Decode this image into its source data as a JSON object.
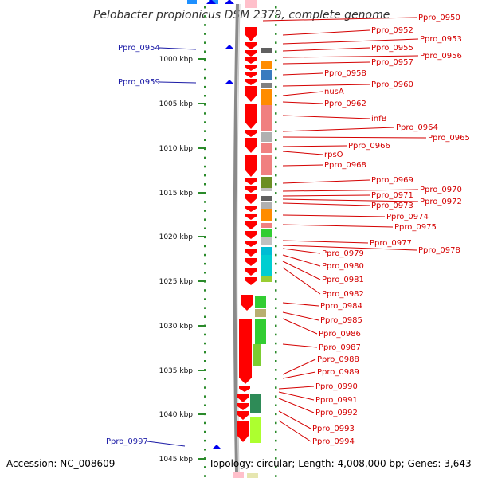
{
  "title": "Pelobacter propionicus DSM 2379, complete genome",
  "footer": {
    "accession": "Accession: NC_008609",
    "summary": "Topology: circular; Length: 4,008,000 bp; Genes: 3,643"
  },
  "scale_labels": [
    "1000 kbp",
    "1005 kbp",
    "1010 kbp",
    "1015 kbp",
    "1020 kbp",
    "1025 kbp",
    "1030 kbp",
    "1035 kbp",
    "1040 kbp",
    "1045 kbp"
  ],
  "left_labels": [
    "Ppro_0954",
    "Ppro_0959",
    "Ppro_0997"
  ],
  "right_labels": [
    "Ppro_0950",
    "Ppro_0952",
    "Ppro_0953",
    "Ppro_0955",
    "Ppro_0956",
    "Ppro_0957",
    "Ppro_0958",
    "Ppro_0960",
    "nusA",
    "Ppro_0962",
    "infB",
    "Ppro_0964",
    "Ppro_0965",
    "Ppro_0966",
    "rpsO",
    "Ppro_0968",
    "Ppro_0969",
    "Ppro_0970",
    "Ppro_0971",
    "Ppro_0972",
    "Ppro_0973",
    "Ppro_0974",
    "Ppro_0975",
    "Ppro_0977",
    "Ppro_0978",
    "Ppro_0979",
    "Ppro_0980",
    "Ppro_0981",
    "Ppro_0982",
    "Ppro_0984",
    "Ppro_0985",
    "Ppro_0986",
    "Ppro_0987",
    "Ppro_0988",
    "Ppro_0989",
    "Ppro_0990",
    "Ppro_0991",
    "Ppro_0992",
    "Ppro_0993",
    "Ppro_0994"
  ],
  "colors": {
    "gene": "#ff0000",
    "label": "#d40000",
    "left_label": "#1a1aa6",
    "tick": "#2a8a2a",
    "backbone": "#8a8a8a"
  }
}
